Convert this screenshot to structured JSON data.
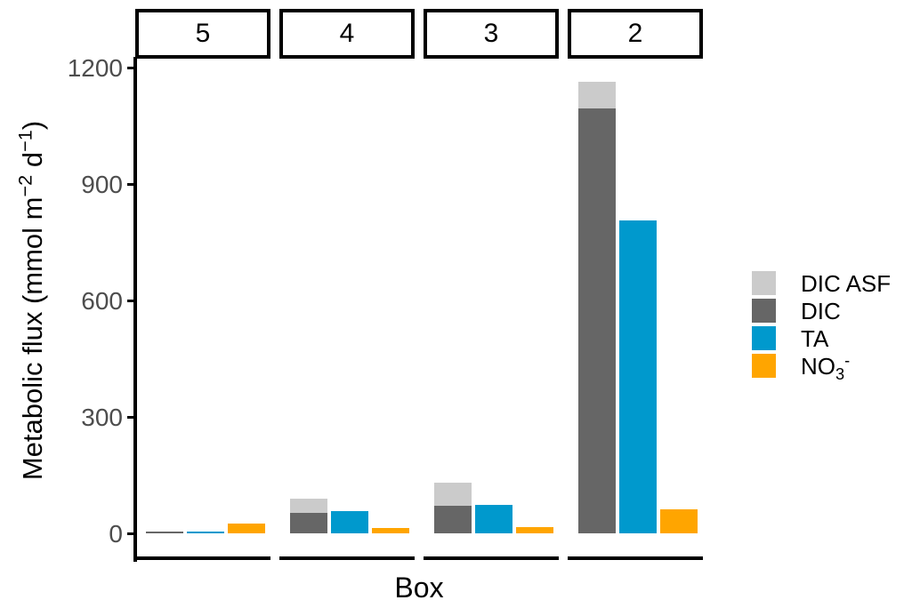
{
  "chart_data": {
    "type": "bar",
    "faceted": true,
    "facet_variable": "Box",
    "facets": [
      "5",
      "4",
      "3",
      "2"
    ],
    "xlabel": "Box",
    "ylabel": "Metabolic flux (mmol m⁻² d⁻¹)",
    "ylabel_parts": [
      {
        "text": "Metabolic flux (mmol m"
      },
      {
        "sup": "−2"
      },
      {
        "text": " d"
      },
      {
        "sup": "−1"
      },
      {
        "text": ")"
      }
    ],
    "ylim": [
      0,
      1200
    ],
    "yticks": [
      0,
      300,
      600,
      900,
      1200
    ],
    "grid": false,
    "legend_position": "right",
    "bar_arrangement": "3 bars per facet: stacked (DIC + DIC ASF on top), TA, NO3-",
    "series": [
      {
        "name": "DIC ASF",
        "color": "#CBCBCB",
        "stack": "dic",
        "values": [
          0,
          36,
          60,
          68
        ]
      },
      {
        "name": "DIC",
        "color": "#666666",
        "stack": "dic",
        "values": [
          2,
          53,
          70,
          1095
        ]
      },
      {
        "name": "TA",
        "color": "#0099CD",
        "values": [
          2,
          57,
          74,
          805
        ]
      },
      {
        "name": "NO3-",
        "color": "#FFA500",
        "label_parts": [
          {
            "text": "NO"
          },
          {
            "sub": "3"
          },
          {
            "sup": "-"
          }
        ],
        "values": [
          25,
          14,
          16,
          62
        ]
      }
    ],
    "axis_color": "#000000",
    "tick_label_color": "#4D4D4D"
  }
}
